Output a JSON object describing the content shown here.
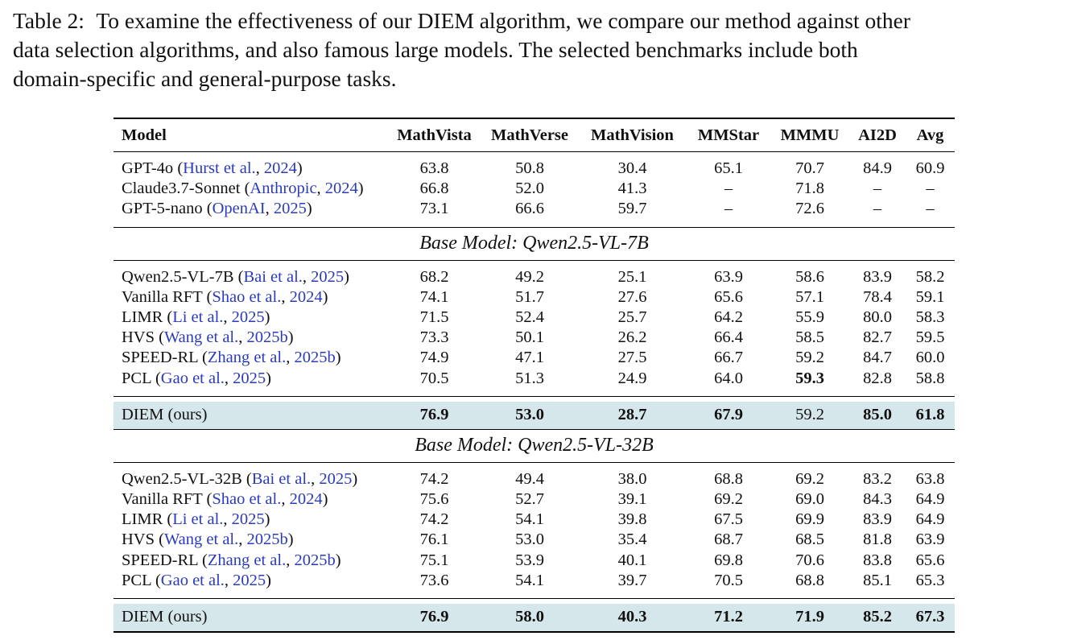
{
  "caption": {
    "label": "Table 2:",
    "lines": [
      "To examine the effectiveness of our DIEM algorithm, we compare our method against other",
      "data selection algorithms, and also famous large models. The selected benchmarks include both",
      "domain-specific and general-purpose tasks."
    ]
  },
  "header": [
    "Model",
    "MathVista",
    "MathVerse",
    "MathVision",
    "MMStar",
    "MMMU",
    "AI2D",
    "Avg"
  ],
  "proprietary": [
    {
      "name": "GPT-4o",
      "cite_author": "Hurst et al.",
      "cite_year": "2024",
      "values": [
        "63.8",
        "50.8",
        "30.4",
        "65.1",
        "70.7",
        "84.9",
        "60.9"
      ]
    },
    {
      "name": "Claude3.7-Sonnet",
      "cite_author": "Anthropic",
      "cite_year": "2024",
      "values": [
        "66.8",
        "52.0",
        "41.3",
        "–",
        "71.8",
        "–",
        "–"
      ]
    },
    {
      "name": "GPT-5-nano",
      "cite_author": "OpenAI",
      "cite_year": "2025",
      "values": [
        "73.1",
        "66.6",
        "59.7",
        "–",
        "72.6",
        "–",
        "–"
      ]
    }
  ],
  "sections": [
    {
      "title": "Base Model: Qwen2.5-VL-7B",
      "rows": [
        {
          "name": "Qwen2.5-VL-7B",
          "cite_author": "Bai et al.",
          "cite_year": "2025",
          "values": [
            "68.2",
            "49.2",
            "25.1",
            "63.9",
            "58.6",
            "83.9",
            "58.2"
          ]
        },
        {
          "name": "Vanilla RFT",
          "cite_author": "Shao et al.",
          "cite_year": "2024",
          "values": [
            "74.1",
            "51.7",
            "27.6",
            "65.6",
            "57.1",
            "78.4",
            "59.1"
          ]
        },
        {
          "name": "LIMR",
          "cite_author": "Li et al.",
          "cite_year": "2025",
          "values": [
            "71.5",
            "52.4",
            "25.7",
            "64.2",
            "55.9",
            "80.0",
            "58.3"
          ]
        },
        {
          "name": "HVS",
          "cite_author": "Wang et al.",
          "cite_year": "2025b",
          "values": [
            "73.3",
            "50.1",
            "26.2",
            "66.4",
            "58.5",
            "82.7",
            "59.5"
          ]
        },
        {
          "name": "SPEED-RL",
          "cite_author": "Zhang et al.",
          "cite_year": "2025b",
          "values": [
            "74.9",
            "47.1",
            "27.5",
            "66.7",
            "59.2",
            "84.7",
            "60.0"
          ]
        },
        {
          "name": "PCL",
          "cite_author": "Gao et al.",
          "cite_year": "2025",
          "values": [
            "70.5",
            "51.3",
            "24.9",
            "64.0",
            "59.3",
            "82.8",
            "58.8"
          ],
          "bold": [
            false,
            false,
            false,
            false,
            true,
            false,
            false
          ]
        }
      ],
      "ours": {
        "name": "DIEM (ours)",
        "values": [
          "76.9",
          "53.0",
          "28.7",
          "67.9",
          "59.2",
          "85.0",
          "61.8"
        ],
        "bold": [
          true,
          true,
          true,
          true,
          false,
          true,
          true
        ]
      }
    },
    {
      "title": "Base Model: Qwen2.5-VL-32B",
      "rows": [
        {
          "name": "Qwen2.5-VL-32B",
          "cite_author": "Bai et al.",
          "cite_year": "2025",
          "values": [
            "74.2",
            "49.4",
            "38.0",
            "68.8",
            "69.2",
            "83.2",
            "63.8"
          ]
        },
        {
          "name": "Vanilla RFT",
          "cite_author": "Shao et al.",
          "cite_year": "2024",
          "values": [
            "75.6",
            "52.7",
            "39.1",
            "69.2",
            "69.0",
            "84.3",
            "64.9"
          ]
        },
        {
          "name": "LIMR",
          "cite_author": "Li et al.",
          "cite_year": "2025",
          "values": [
            "74.2",
            "54.1",
            "39.8",
            "67.5",
            "69.9",
            "83.9",
            "64.9"
          ]
        },
        {
          "name": "HVS",
          "cite_author": "Wang et al.",
          "cite_year": "2025b",
          "values": [
            "76.1",
            "53.0",
            "35.4",
            "68.7",
            "68.5",
            "81.8",
            "63.9"
          ]
        },
        {
          "name": "SPEED-RL",
          "cite_author": "Zhang et al.",
          "cite_year": "2025b",
          "values": [
            "75.1",
            "53.9",
            "40.1",
            "69.8",
            "70.6",
            "83.8",
            "65.6"
          ]
        },
        {
          "name": "PCL",
          "cite_author": "Gao et al.",
          "cite_year": "2025",
          "values": [
            "73.6",
            "54.1",
            "39.7",
            "70.5",
            "68.8",
            "85.1",
            "65.3"
          ]
        }
      ],
      "ours": {
        "name": "DIEM (ours)",
        "values": [
          "76.9",
          "58.0",
          "40.3",
          "71.2",
          "71.9",
          "85.2",
          "67.3"
        ],
        "bold": [
          true,
          true,
          true,
          true,
          true,
          true,
          true
        ]
      }
    }
  ],
  "colors": {
    "citation": "#2b3bbd",
    "ours_highlight": "#d6e7ec"
  }
}
